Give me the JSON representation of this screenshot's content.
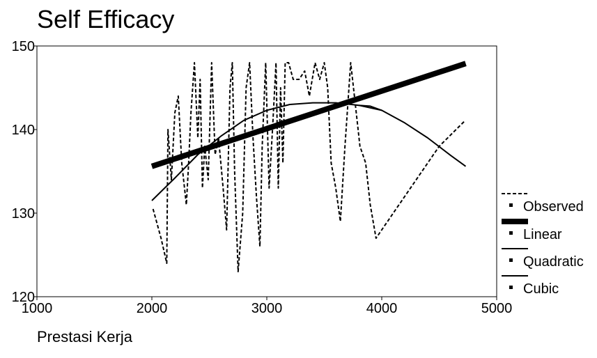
{
  "chart_data": {
    "type": "line",
    "title": "Self Efficacy",
    "xlabel": "Prestasi Kerja",
    "ylabel": "",
    "xlim": [
      1000,
      5000
    ],
    "ylim": [
      120,
      150
    ],
    "xticks": [
      1000,
      2000,
      3000,
      4000,
      5000
    ],
    "yticks": [
      120,
      130,
      140,
      150
    ],
    "grid": false,
    "legend_position": "right",
    "series": [
      {
        "name": "Observed",
        "style": "dashed",
        "color": "#000000",
        "points": [
          [
            2010,
            130.5
          ],
          [
            2080,
            127
          ],
          [
            2130,
            124
          ],
          [
            2140,
            140
          ],
          [
            2170,
            134
          ],
          [
            2200,
            142
          ],
          [
            2230,
            144
          ],
          [
            2260,
            136
          ],
          [
            2300,
            131
          ],
          [
            2320,
            136
          ],
          [
            2340,
            142
          ],
          [
            2370,
            148
          ],
          [
            2400,
            139
          ],
          [
            2420,
            146
          ],
          [
            2440,
            133
          ],
          [
            2460,
            138
          ],
          [
            2490,
            134
          ],
          [
            2520,
            148
          ],
          [
            2550,
            137
          ],
          [
            2580,
            139
          ],
          [
            2620,
            133
          ],
          [
            2650,
            128
          ],
          [
            2680,
            145
          ],
          [
            2700,
            148
          ],
          [
            2720,
            135
          ],
          [
            2750,
            123
          ],
          [
            2790,
            130
          ],
          [
            2820,
            145
          ],
          [
            2850,
            148
          ],
          [
            2880,
            139
          ],
          [
            2910,
            132
          ],
          [
            2940,
            126
          ],
          [
            2960,
            138
          ],
          [
            2990,
            148
          ],
          [
            3020,
            133
          ],
          [
            3050,
            140
          ],
          [
            3080,
            148
          ],
          [
            3100,
            133
          ],
          [
            3120,
            145
          ],
          [
            3140,
            136
          ],
          [
            3160,
            148
          ],
          [
            3190,
            148
          ],
          [
            3230,
            146
          ],
          [
            3280,
            146
          ],
          [
            3330,
            147
          ],
          [
            3370,
            144
          ],
          [
            3420,
            148
          ],
          [
            3460,
            146
          ],
          [
            3500,
            148
          ],
          [
            3530,
            145
          ],
          [
            3560,
            136
          ],
          [
            3600,
            133
          ],
          [
            3640,
            129
          ],
          [
            3680,
            138
          ],
          [
            3730,
            148
          ],
          [
            3770,
            143
          ],
          [
            3810,
            138
          ],
          [
            3860,
            136
          ],
          [
            3900,
            131
          ],
          [
            3950,
            127
          ],
          [
            4100,
            130
          ],
          [
            4300,
            134
          ],
          [
            4500,
            138
          ],
          [
            4720,
            141
          ]
        ]
      },
      {
        "name": "Linear",
        "style": "thick",
        "color": "#000000",
        "points": [
          [
            2000,
            135.6
          ],
          [
            4730,
            147.9
          ]
        ]
      },
      {
        "name": "Quadratic",
        "style": "solid",
        "color": "#000000",
        "points": [
          [
            2000,
            131.5
          ],
          [
            2200,
            134.2
          ],
          [
            2400,
            137.0
          ],
          [
            2600,
            139.2
          ],
          [
            2800,
            141.1
          ],
          [
            3000,
            142.3
          ],
          [
            3200,
            143.0
          ],
          [
            3400,
            143.2
          ],
          [
            3600,
            143.2
          ],
          [
            3800,
            142.9
          ],
          [
            4000,
            142.3
          ]
        ]
      },
      {
        "name": "Cubic",
        "style": "solid",
        "color": "#000000",
        "points": [
          [
            3800,
            142.9
          ],
          [
            3900,
            142.8
          ],
          [
            4000,
            142.3
          ],
          [
            4200,
            140.8
          ],
          [
            4400,
            139.0
          ],
          [
            4600,
            136.9
          ],
          [
            4730,
            135.6
          ]
        ]
      }
    ]
  }
}
